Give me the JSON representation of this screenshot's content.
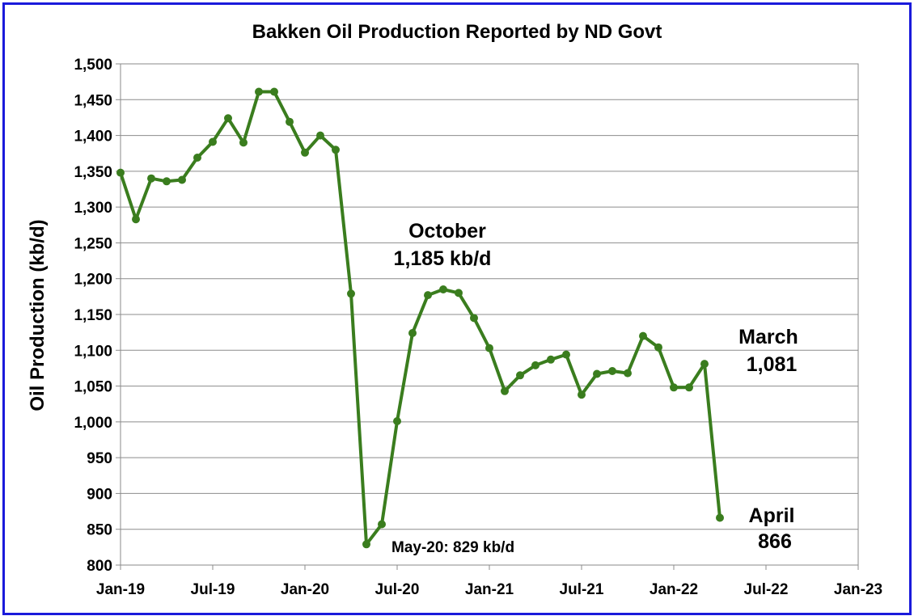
{
  "chart_data": {
    "type": "line",
    "title": "Bakken Oil Production Reported by ND Govt",
    "xlabel": "",
    "ylabel": "Oil Production (kb/d)",
    "ylim": [
      800,
      1500
    ],
    "y_ticks": [
      "800",
      "850",
      "900",
      "950",
      "1,000",
      "1,050",
      "1,100",
      "1,150",
      "1,200",
      "1,250",
      "1,300",
      "1,350",
      "1,400",
      "1,450",
      "1,500"
    ],
    "x_ticks": [
      "Jan-19",
      "Jul-19",
      "Jan-20",
      "Jul-20",
      "Jan-21",
      "Jul-21",
      "Jan-22",
      "Jul-22",
      "Jan-23"
    ],
    "grid": true,
    "line_color": "#3a7d1e",
    "series": [
      {
        "x": [
          "Jan-19",
          "Feb-19",
          "Mar-19",
          "Apr-19",
          "May-19",
          "Jun-19",
          "Jul-19",
          "Aug-19",
          "Sep-19",
          "Oct-19",
          "Nov-19",
          "Dec-19",
          "Jan-20",
          "Feb-20",
          "Mar-20",
          "Apr-20",
          "May-20",
          "Jun-20",
          "Jul-20",
          "Aug-20",
          "Sep-20",
          "Oct-20",
          "Nov-20",
          "Dec-20",
          "Jan-21",
          "Feb-21",
          "Mar-21",
          "Apr-21",
          "May-21",
          "Jun-21",
          "Jul-21",
          "Aug-21",
          "Sep-21",
          "Oct-21",
          "Nov-21",
          "Dec-21",
          "Jan-22",
          "Feb-22",
          "Mar-22",
          "Apr-22"
        ],
        "values": [
          1348,
          1283,
          1340,
          1336,
          1338,
          1369,
          1391,
          1424,
          1390,
          1461,
          1461,
          1419,
          1376,
          1400,
          1380,
          1179,
          829,
          857,
          1001,
          1124,
          1177,
          1185,
          1180,
          1145,
          1103,
          1043,
          1065,
          1079,
          1087,
          1094,
          1038,
          1067,
          1071,
          1068,
          1120,
          1104,
          1048,
          1048,
          1081,
          866
        ]
      }
    ],
    "annotations": [
      {
        "lines": [
          "October",
          "1,185 kb/d"
        ]
      },
      {
        "lines": [
          "May-20: 829 kb/d"
        ]
      },
      {
        "lines": [
          "March",
          "1,081"
        ]
      },
      {
        "lines": [
          "April",
          "866"
        ]
      }
    ]
  }
}
